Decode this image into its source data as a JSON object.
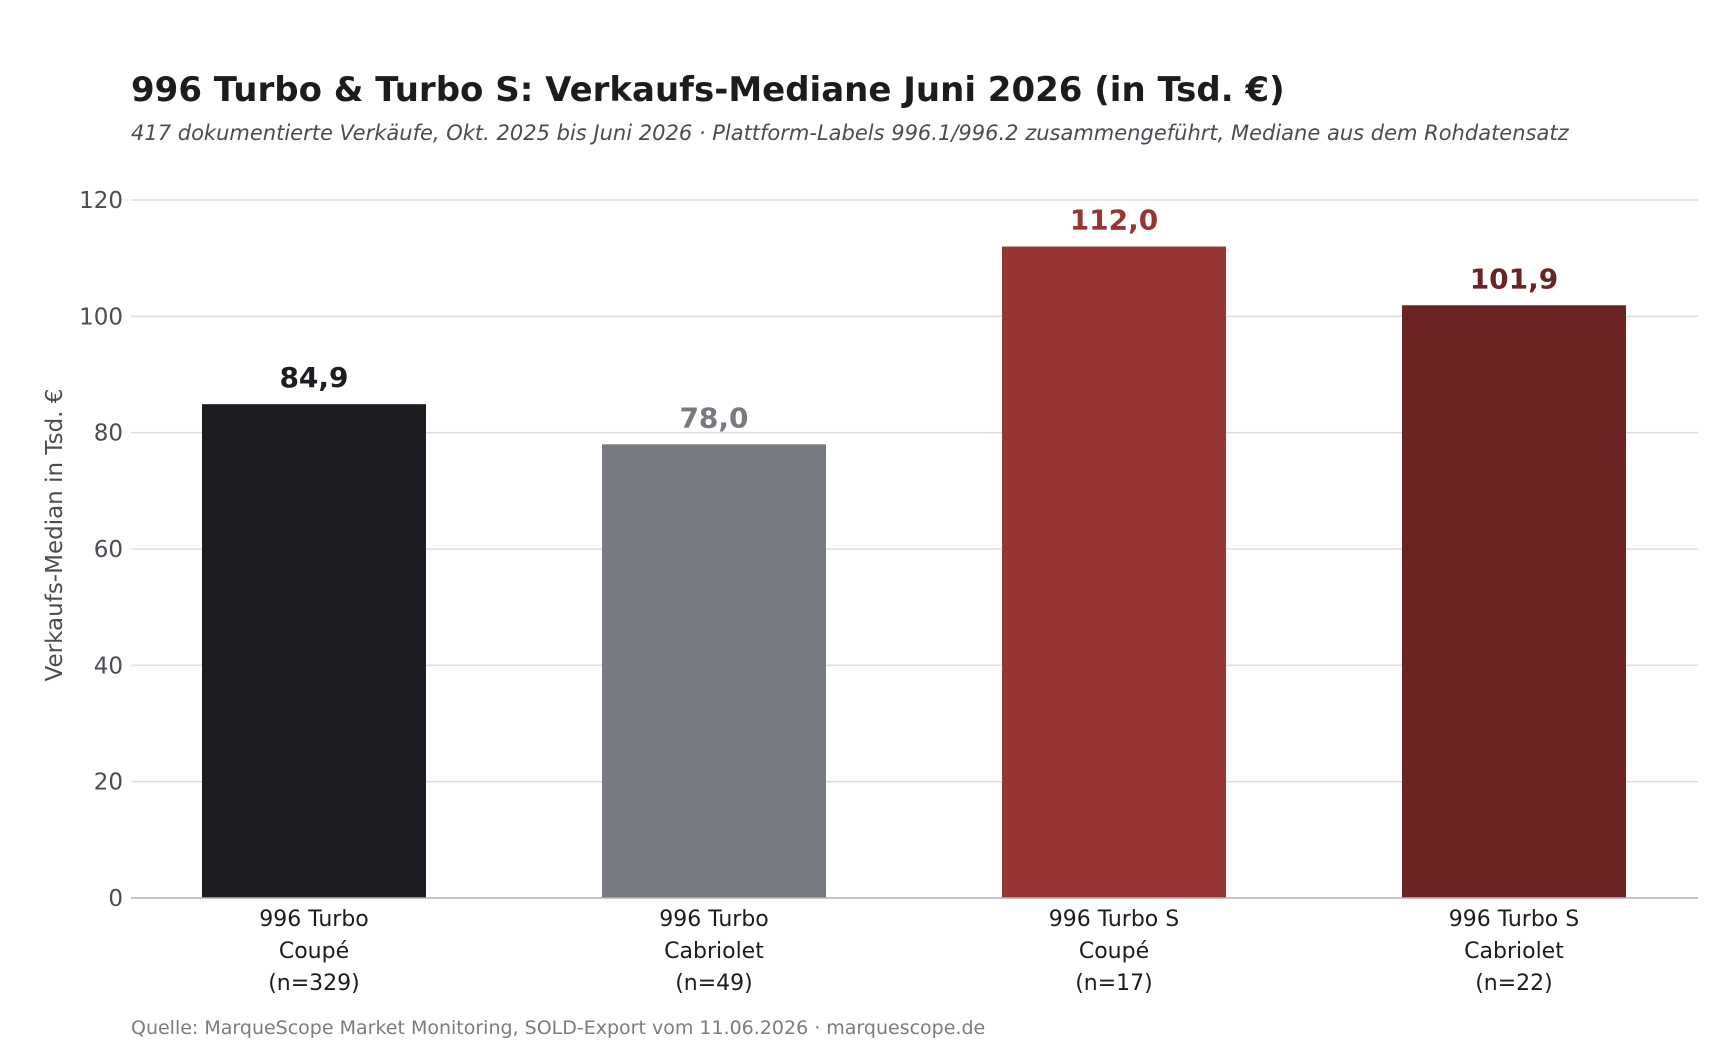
{
  "chart_data": {
    "type": "bar",
    "title": "996 Turbo & Turbo S: Verkaufs-Mediane Juni 2026 (in Tsd. €)",
    "subtitle": "417 dokumentierte Verkäufe, Okt. 2025 bis Juni 2026 · Plattform-Labels 996.1/996.2 zusammengeführt, Mediane aus dem Rohdatensatz",
    "xlabel": "",
    "ylabel": "Verkaufs-Median in Tsd. €",
    "ylim": [
      0,
      120
    ],
    "yticks": [
      0,
      20,
      40,
      60,
      80,
      100,
      120
    ],
    "grid": true,
    "categories": [
      [
        "996 Turbo",
        "Coupé",
        "(n=329)"
      ],
      [
        "996 Turbo",
        "Cabriolet",
        "(n=49)"
      ],
      [
        "996 Turbo S",
        "Coupé",
        "(n=17)"
      ],
      [
        "996 Turbo S",
        "Cabriolet",
        "(n=22)"
      ]
    ],
    "values": [
      84.9,
      78.0,
      112.0,
      101.9
    ],
    "value_labels": [
      "84,9",
      "78,0",
      "112,0",
      "101,9"
    ],
    "colors": [
      "#1c1d20",
      "#777a81",
      "#973532",
      "#6b2423"
    ],
    "source": "Quelle: MarqueScope Market Monitoring, SOLD-Export vom 11.06.2026 · marquescope.de"
  }
}
